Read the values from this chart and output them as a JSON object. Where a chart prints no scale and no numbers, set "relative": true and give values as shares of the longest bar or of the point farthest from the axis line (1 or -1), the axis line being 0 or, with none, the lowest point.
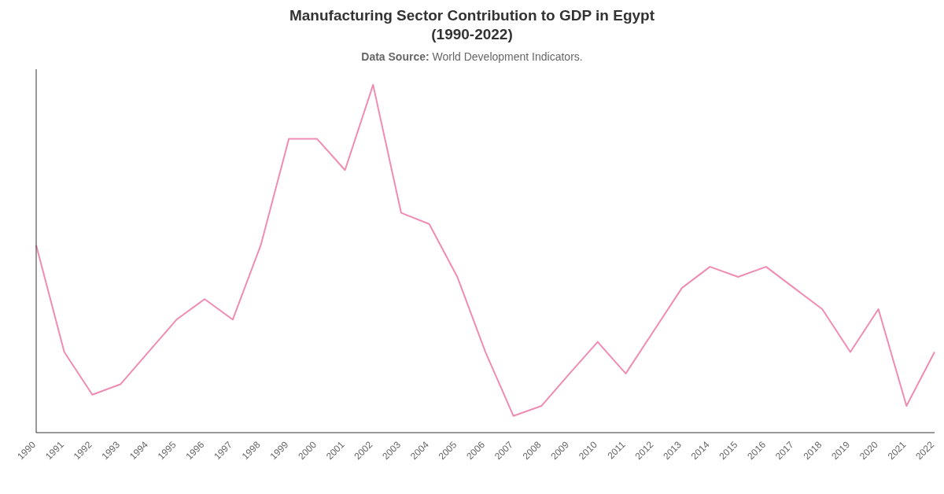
{
  "chart_data": {
    "type": "line",
    "title": "Manufacturing Sector Contribution to GDP in Egypt\n(1990-2022)",
    "subtitle": "Data Source: World Development Indicators.",
    "relative": true,
    "grid": false,
    "legend": false,
    "marker": "none",
    "line_style": "solid",
    "categories": [
      "1990",
      "1991",
      "1992",
      "1993",
      "1994",
      "1995",
      "1996",
      "1997",
      "1998",
      "1999",
      "2000",
      "2001",
      "2002",
      "2003",
      "2004",
      "2005",
      "2006",
      "2007",
      "2008",
      "2009",
      "2010",
      "2011",
      "2012",
      "2013",
      "2014",
      "2015",
      "2016",
      "2017",
      "2018",
      "2019",
      "2020",
      "2021",
      "2022"
    ],
    "series": [
      {
        "color": "#f08cb4",
        "values": [
          0.539,
          0.232,
          0.109,
          0.139,
          0.232,
          0.325,
          0.384,
          0.325,
          0.539,
          0.845,
          0.845,
          0.755,
          1,
          0.632,
          0.6,
          0.448,
          0.232,
          0.048,
          0.077,
          0.17,
          0.261,
          0.17,
          0.293,
          0.416,
          0.477,
          0.448,
          0.477,
          0.416,
          0.355,
          0.232,
          0.355,
          0.077,
          0.232
        ]
      }
    ]
  }
}
